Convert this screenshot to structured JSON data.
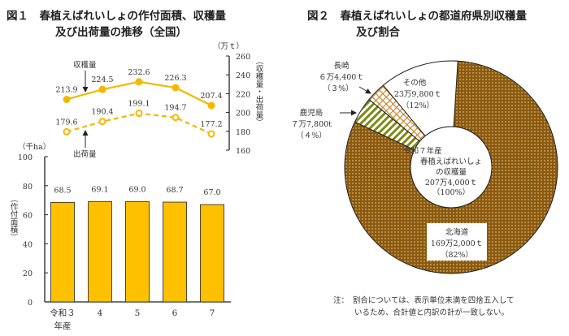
{
  "fig1": {
    "title_line1": "図１　春植えばれいしょの作付面積、収穫量",
    "title_line2": "及び出荷量の推移（全国）"
  },
  "fig2": {
    "title_line1": "図２　春植えばれいしょの都道府県別収穫量",
    "title_line2": "及び割合"
  },
  "note": {
    "line1": "注：　割合については、表示単位未満を四捨五入して",
    "line2": "いるため、合計値と内訳の計が一致しない。"
  },
  "colors": {
    "bar": "#ffc000",
    "line": "#f5b800",
    "hokkaido": "#8c5a0e",
    "kagoshima": "#7d8a12",
    "nagasaki": "#c8862e",
    "other": "#ffffff"
  },
  "chart_data": [
    {
      "type": "bar",
      "categories": [
        "令和３年産",
        "4",
        "5",
        "6",
        "7"
      ],
      "category_labels": [
        [
          "令和３",
          "年産"
        ],
        [
          "4"
        ],
        [
          "5"
        ],
        [
          "6"
        ],
        [
          "7"
        ]
      ],
      "values": [
        68.5,
        69.1,
        69.0,
        68.7,
        67.0
      ],
      "data_labels": [
        "68.5",
        "69.1",
        "69.0",
        "68.7",
        "67.0"
      ],
      "unit": "（千ha）",
      "ylabel": "（作付面積）",
      "ylim": [
        0,
        100
      ],
      "yticks": [
        "0",
        "20",
        "40",
        "60",
        "80",
        "100"
      ],
      "grid": false
    },
    {
      "type": "line",
      "categories": [
        "令和３年産",
        "4",
        "5",
        "6",
        "7"
      ],
      "unit": "（万ｔ）",
      "ylabel": "（収穫量・出荷量）",
      "ylim": [
        160,
        260
      ],
      "yticks": [
        "160",
        "180",
        "200",
        "220",
        "240",
        "260"
      ],
      "axis_side": "right",
      "series": [
        {
          "name": "収穫量",
          "style": "solid",
          "values": [
            213.9,
            224.5,
            232.6,
            226.3,
            207.4
          ],
          "data_labels": [
            "213.9",
            "224.5",
            "232.6",
            "226.3",
            "207.4"
          ]
        },
        {
          "name": "出荷量",
          "style": "dashed",
          "values": [
            179.6,
            190.4,
            199.1,
            194.7,
            177.2
          ],
          "data_labels": [
            "179.6",
            "190.4",
            "199.1",
            "194.7",
            "177.2"
          ]
        }
      ]
    },
    {
      "type": "pie",
      "donut": true,
      "center_label": [
        "令和７年産",
        "春植えばれいしょ",
        "の収穫量",
        "207万4,000ｔ",
        "（100%）"
      ],
      "slices": [
        {
          "name": "北海道",
          "value_text": "169万2,000ｔ",
          "pct_text": "（82%）",
          "percent": 82
        },
        {
          "name": "鹿児島",
          "value_text": "７万7,800t",
          "pct_text": "（４%）",
          "percent": 4
        },
        {
          "name": "長崎",
          "value_text": "６万4,400ｔ",
          "pct_text": "（３%）",
          "percent": 3
        },
        {
          "name": "その他",
          "value_text": "23万9,800ｔ",
          "pct_text": "（12%）",
          "percent": 12
        }
      ]
    }
  ]
}
